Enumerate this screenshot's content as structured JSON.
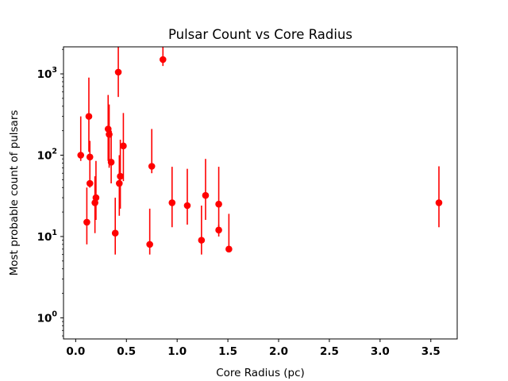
{
  "chart_data": {
    "type": "scatter",
    "title": "Pulsar Count vs Core Radius",
    "xlabel": "Core Radius (pc)",
    "ylabel": "Most probable count of pulsars",
    "xscale": "linear",
    "yscale": "log",
    "xlim": [
      -0.12,
      3.76
    ],
    "ylim": [
      0.55,
      2150
    ],
    "grid": false,
    "marker_color": "#ff0000",
    "xticks": [
      {
        "value": 0.0,
        "label": "0.0"
      },
      {
        "value": 0.5,
        "label": "0.5"
      },
      {
        "value": 1.0,
        "label": "1.0"
      },
      {
        "value": 1.5,
        "label": "1.5"
      },
      {
        "value": 2.0,
        "label": "2.0"
      },
      {
        "value": 2.5,
        "label": "2.5"
      },
      {
        "value": 3.0,
        "label": "3.0"
      },
      {
        "value": 3.5,
        "label": "3.5"
      }
    ],
    "yticks": [
      {
        "value": 1,
        "base": "10",
        "exp": "0"
      },
      {
        "value": 10,
        "base": "10",
        "exp": "1"
      },
      {
        "value": 100,
        "base": "10",
        "exp": "2"
      },
      {
        "value": 1000,
        "base": "10",
        "exp": "3"
      }
    ],
    "points": [
      {
        "x": 0.05,
        "y": 100,
        "ylow": 85,
        "yhigh": 300
      },
      {
        "x": 0.11,
        "y": 15,
        "ylow": 8,
        "yhigh": 40
      },
      {
        "x": 0.13,
        "y": 300,
        "ylow": 110,
        "yhigh": 900
      },
      {
        "x": 0.14,
        "y": 95,
        "ylow": 40,
        "yhigh": 150
      },
      {
        "x": 0.14,
        "y": 45,
        "ylow": 40,
        "yhigh": 48
      },
      {
        "x": 0.19,
        "y": 26,
        "ylow": 11,
        "yhigh": 55
      },
      {
        "x": 0.2,
        "y": 30,
        "ylow": 16,
        "yhigh": 85
      },
      {
        "x": 0.32,
        "y": 210,
        "ylow": 85,
        "yhigh": 550
      },
      {
        "x": 0.33,
        "y": 180,
        "ylow": 70,
        "yhigh": 420
      },
      {
        "x": 0.35,
        "y": 82,
        "ylow": 45,
        "yhigh": 200
      },
      {
        "x": 0.39,
        "y": 11,
        "ylow": 6,
        "yhigh": 30
      },
      {
        "x": 0.42,
        "y": 1050,
        "ylow": 520,
        "yhigh": 2150
      },
      {
        "x": 0.43,
        "y": 45,
        "ylow": 18,
        "yhigh": 100
      },
      {
        "x": 0.44,
        "y": 55,
        "ylow": 22,
        "yhigh": 155
      },
      {
        "x": 0.47,
        "y": 130,
        "ylow": 48,
        "yhigh": 330
      },
      {
        "x": 0.73,
        "y": 8,
        "ylow": 6,
        "yhigh": 22
      },
      {
        "x": 0.75,
        "y": 73,
        "ylow": 60,
        "yhigh": 210
      },
      {
        "x": 0.86,
        "y": 1500,
        "ylow": 1250,
        "yhigh": 2150
      },
      {
        "x": 0.95,
        "y": 26,
        "ylow": 13,
        "yhigh": 72
      },
      {
        "x": 1.1,
        "y": 24,
        "ylow": 14,
        "yhigh": 68
      },
      {
        "x": 1.24,
        "y": 9,
        "ylow": 6,
        "yhigh": 24
      },
      {
        "x": 1.28,
        "y": 32,
        "ylow": 16,
        "yhigh": 90
      },
      {
        "x": 1.41,
        "y": 25,
        "ylow": 11,
        "yhigh": 72
      },
      {
        "x": 1.41,
        "y": 12,
        "ylow": 10,
        "yhigh": 14
      },
      {
        "x": 1.51,
        "y": 7,
        "ylow": 6.5,
        "yhigh": 19
      },
      {
        "x": 3.58,
        "y": 26,
        "ylow": 13,
        "yhigh": 73
      }
    ]
  }
}
